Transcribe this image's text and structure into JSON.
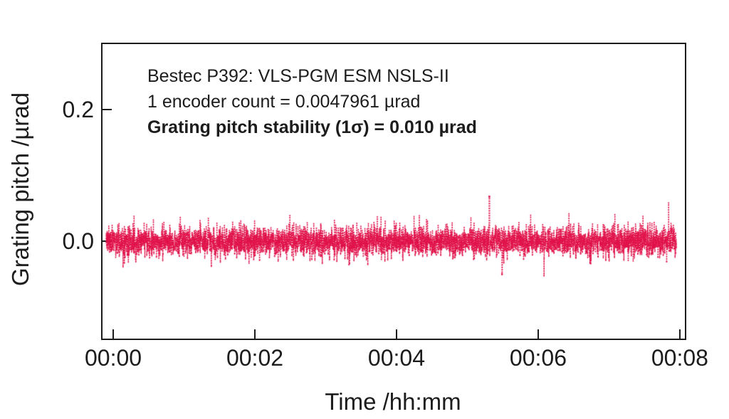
{
  "figure": {
    "background": "#ffffff",
    "axis_color": "#1b1b1b",
    "text_color": "#1c1c1c",
    "annotation": {
      "line1": "Bestec P392: VLS-PGM ESM NSLS-II",
      "line2": "1 encoder count = 0.0047961 µrad",
      "line3": "Grating pitch stability (1σ) = 0.010 µrad"
    }
  },
  "chart_data": {
    "type": "line",
    "style": "dotted-noise-trace",
    "title": "",
    "xlabel": "Time /hh:mm",
    "ylabel": "Grating pitch /µrad",
    "grid": false,
    "legend": null,
    "x_tick_labels": [
      "00:00",
      "00:02",
      "00:04",
      "00:06",
      "00:08"
    ],
    "x_tick_minutes": [
      0,
      2,
      4,
      6,
      8
    ],
    "xlim_minutes": [
      -0.151,
      8.071
    ],
    "y_tick_labels": [
      "0.2",
      "0.0"
    ],
    "y_tick_values": [
      0.2,
      0.0
    ],
    "ylim": [
      -0.148,
      0.3
    ],
    "series": [
      {
        "name": "grating-pitch",
        "color": "#e0124a",
        "mean_urad": 0.0,
        "sigma_urad": 0.01,
        "encoder_count_urad": 0.0047961,
        "peak_positive_urad": 0.068,
        "peak_negative_urad": -0.052,
        "t_start_minutes": -0.1,
        "t_end_minutes": 7.95,
        "n_points": 4600,
        "seed": 42,
        "spike_probability": 0.004,
        "notable_spikes": [
          {
            "t_minutes": 5.31,
            "value_urad": 0.068
          },
          {
            "t_minutes": 5.49,
            "value_urad": -0.05
          }
        ]
      }
    ]
  }
}
